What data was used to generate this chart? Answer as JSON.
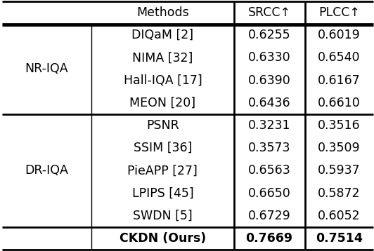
{
  "header": [
    "Methods",
    "SRCC↑",
    "PLCC↑"
  ],
  "groups": [
    {
      "group_label": "NR-IQA",
      "rows": [
        {
          "method": "DIQaM [2]",
          "srcc": "0.6255",
          "plcc": "0.6019",
          "bold": false
        },
        {
          "method": "NIMA [32]",
          "srcc": "0.6330",
          "plcc": "0.6540",
          "bold": false
        },
        {
          "method": "Hall-IQA [17]",
          "srcc": "0.6390",
          "plcc": "0.6167",
          "bold": false
        },
        {
          "method": "MEON [20]",
          "srcc": "0.6436",
          "plcc": "0.6610",
          "bold": false
        }
      ]
    },
    {
      "group_label": "DR-IQA",
      "rows": [
        {
          "method": "PSNR",
          "srcc": "0.3231",
          "plcc": "0.3516",
          "bold": false
        },
        {
          "method": "SSIM [36]",
          "srcc": "0.3573",
          "plcc": "0.3509",
          "bold": false
        },
        {
          "method": "PieAPP [27]",
          "srcc": "0.6563",
          "plcc": "0.5937",
          "bold": false
        },
        {
          "method": "LPIPS [45]",
          "srcc": "0.6650",
          "plcc": "0.5872",
          "bold": false
        },
        {
          "method": "SWDN [5]",
          "srcc": "0.6729",
          "plcc": "0.6052",
          "bold": false
        },
        {
          "method": "CKDN (Ours)",
          "srcc": "0.7669",
          "plcc": "0.7514",
          "bold": true
        }
      ]
    }
  ],
  "bg_color": "#ffffff",
  "text_color": "#000000",
  "thick_lw": 2.0,
  "thin_lw": 1.0,
  "font_size": 12.5,
  "col_splits": [
    0.245,
    0.625,
    0.815
  ]
}
